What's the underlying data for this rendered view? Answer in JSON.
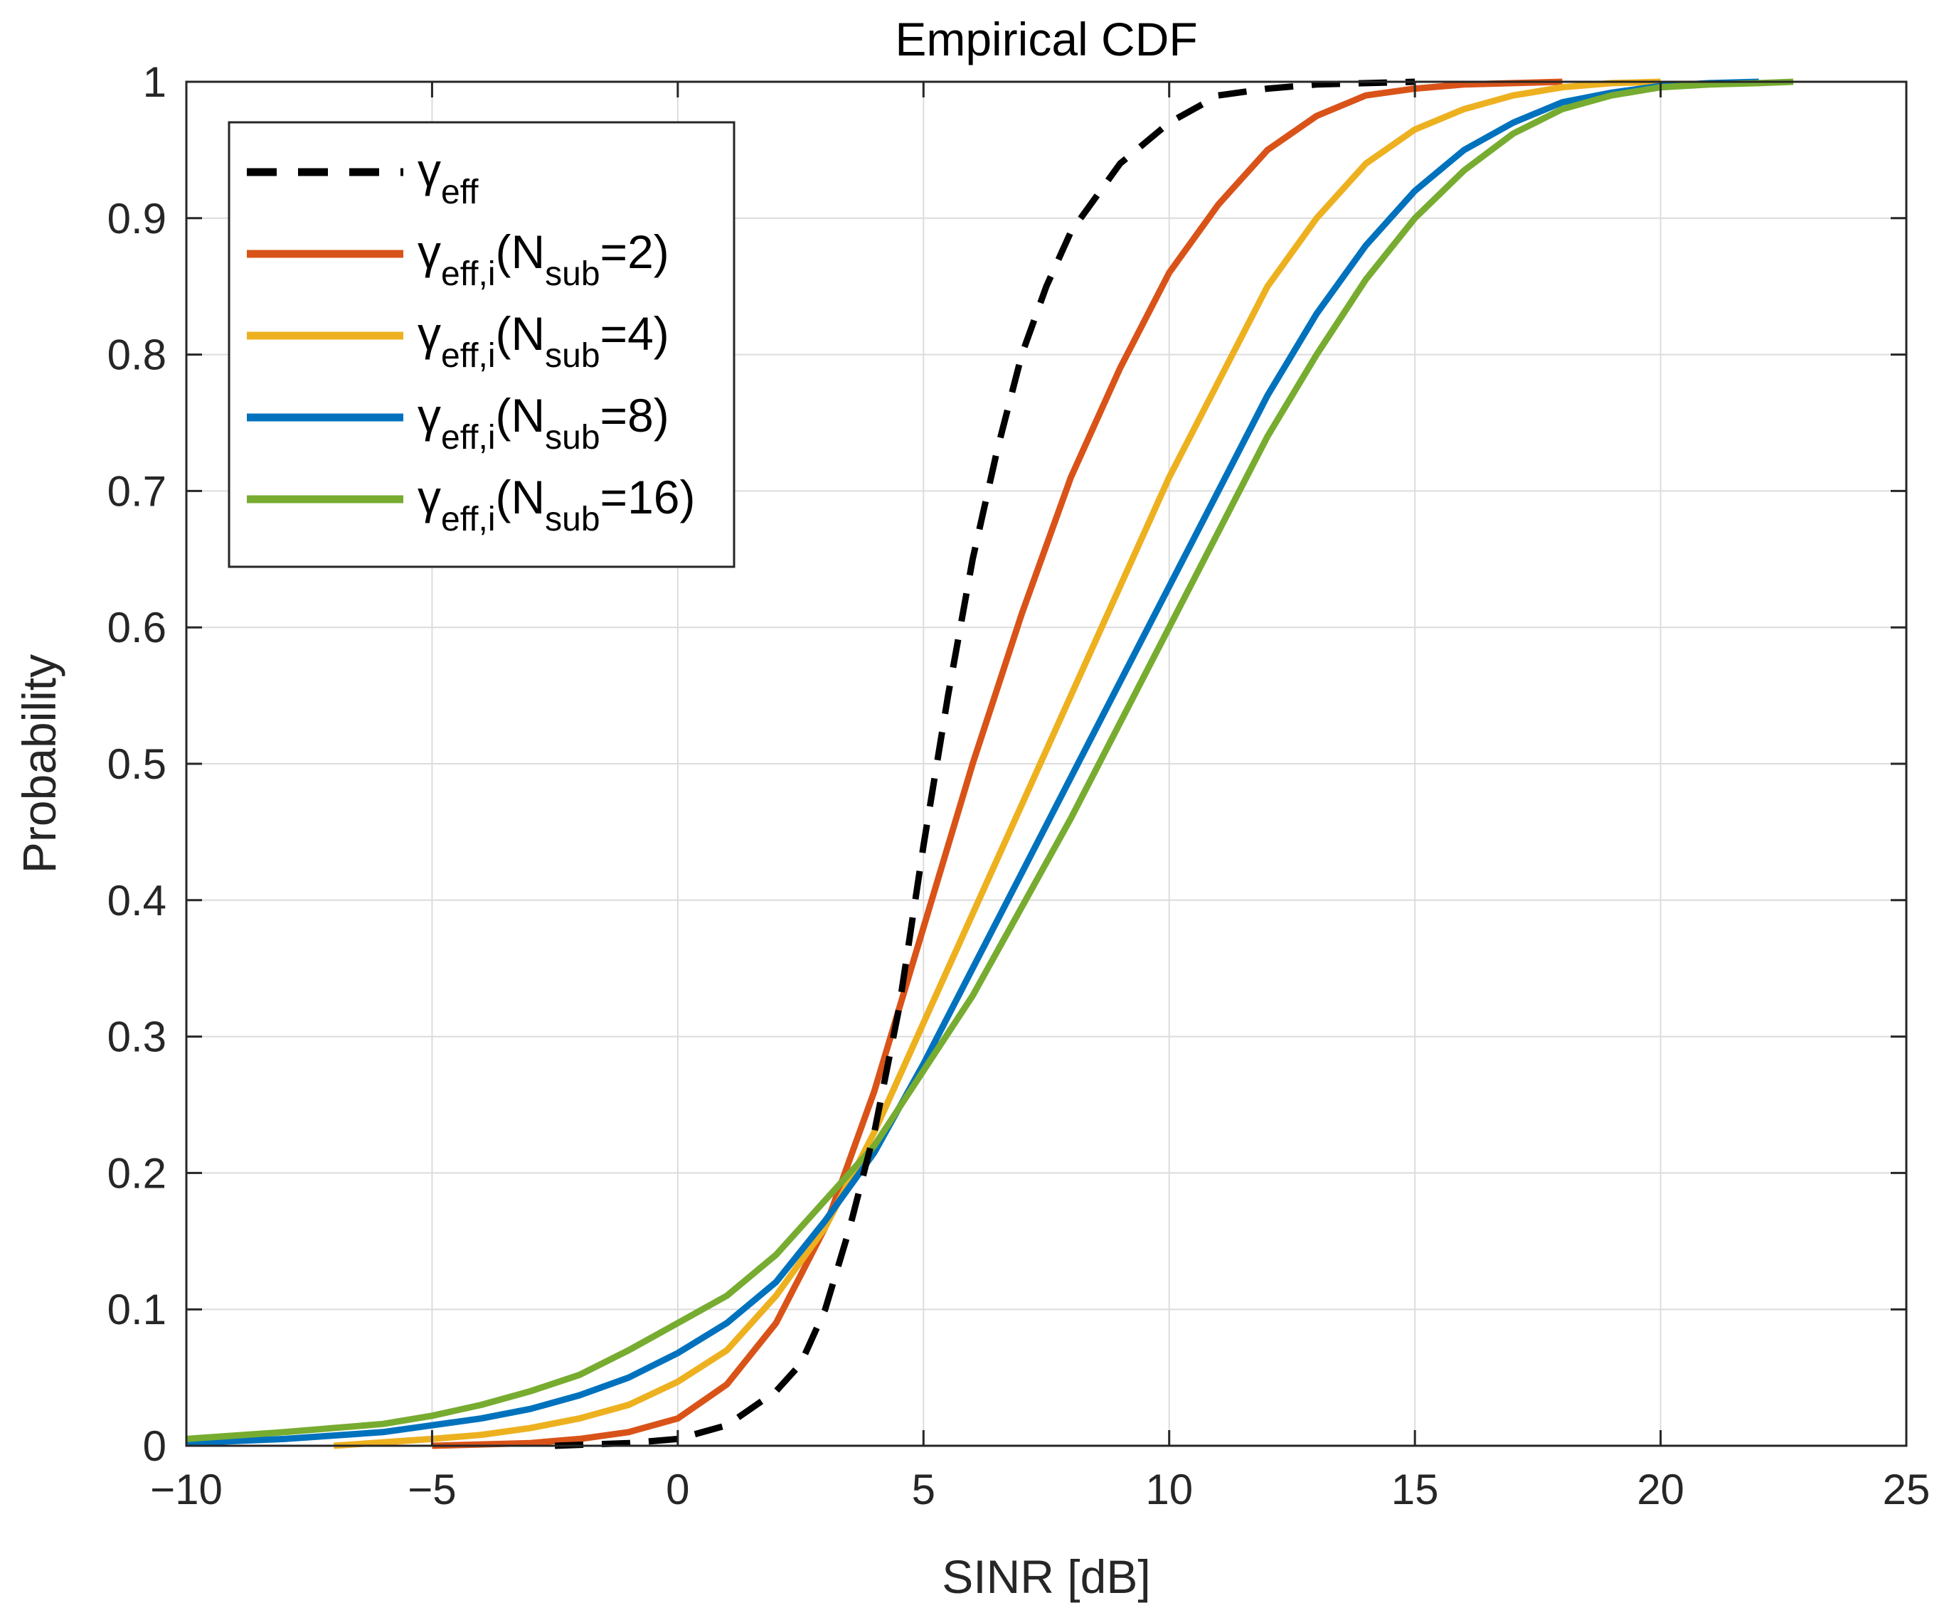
{
  "chart_data": {
    "type": "line",
    "title": "Empirical CDF",
    "xlabel": "SINR [dB]",
    "ylabel": "Probability",
    "xlim": [
      -10,
      25
    ],
    "ylim": [
      0,
      1
    ],
    "grid": true,
    "legend_position": "top-left",
    "xticks": [
      -10,
      -5,
      0,
      5,
      10,
      15,
      20,
      25
    ],
    "xtick_labels": [
      "−10",
      "−5",
      "0",
      "5",
      "10",
      "15",
      "20",
      "25"
    ],
    "yticks": [
      0,
      0.1,
      0.2,
      0.3,
      0.4,
      0.5,
      0.6,
      0.7,
      0.8,
      0.9,
      1
    ],
    "ytick_labels": [
      "0",
      "0.1",
      "0.2",
      "0.3",
      "0.4",
      "0.5",
      "0.6",
      "0.7",
      "0.8",
      "0.9",
      "1"
    ],
    "series": [
      {
        "name": "γeff",
        "legend": {
          "symbol": "γ",
          "sub": "eff",
          "suffix_pre": "",
          "sub2": "",
          "suffix_post": ""
        },
        "color": "#000000",
        "dashed": true,
        "x": [
          -2.5,
          -1,
          0,
          1,
          2,
          2.5,
          3,
          3.5,
          4,
          4.5,
          5,
          5.5,
          6,
          6.5,
          7,
          7.5,
          8,
          9,
          10,
          11,
          12,
          13,
          14,
          15
        ],
        "y": [
          0,
          0.002,
          0.005,
          0.015,
          0.04,
          0.06,
          0.1,
          0.16,
          0.23,
          0.32,
          0.44,
          0.55,
          0.65,
          0.73,
          0.8,
          0.85,
          0.89,
          0.94,
          0.97,
          0.99,
          0.995,
          0.998,
          0.999,
          1
        ]
      },
      {
        "name": "γeff,i(Nsub=2)",
        "legend": {
          "symbol": "γ",
          "sub": "eff,i",
          "suffix_pre": "(N",
          "sub2": "sub",
          "suffix_post": "=2)"
        },
        "color": "#d95319",
        "dashed": false,
        "x": [
          -5,
          -3,
          -2,
          -1,
          0,
          1,
          2,
          3,
          4,
          5,
          6,
          7,
          8,
          9,
          10,
          11,
          12,
          13,
          14,
          15,
          16,
          17,
          18
        ],
        "y": [
          0,
          0.002,
          0.005,
          0.01,
          0.02,
          0.045,
          0.09,
          0.16,
          0.26,
          0.38,
          0.5,
          0.61,
          0.71,
          0.79,
          0.86,
          0.91,
          0.95,
          0.975,
          0.99,
          0.995,
          0.998,
          0.999,
          1
        ]
      },
      {
        "name": "γeff,i(Nsub=4)",
        "legend": {
          "symbol": "γ",
          "sub": "eff,i",
          "suffix_pre": "(N",
          "sub2": "sub",
          "suffix_post": "=4)"
        },
        "color": "#edb120",
        "dashed": false,
        "x": [
          -7,
          -5,
          -4,
          -3,
          -2,
          -1,
          0,
          1,
          2,
          3,
          4,
          5,
          6,
          7,
          8,
          9,
          10,
          11,
          12,
          13,
          14,
          15,
          16,
          17,
          18,
          19,
          20
        ],
        "y": [
          0,
          0.005,
          0.008,
          0.013,
          0.02,
          0.03,
          0.047,
          0.07,
          0.11,
          0.16,
          0.23,
          0.31,
          0.39,
          0.47,
          0.55,
          0.63,
          0.71,
          0.78,
          0.85,
          0.9,
          0.94,
          0.965,
          0.98,
          0.99,
          0.996,
          0.999,
          1
        ]
      },
      {
        "name": "γeff,i(Nsub=8)",
        "legend": {
          "symbol": "γ",
          "sub": "eff,i",
          "suffix_pre": "(N",
          "sub2": "sub",
          "suffix_post": "=8)"
        },
        "color": "#0072bd",
        "dashed": false,
        "x": [
          -10,
          -8,
          -6,
          -5,
          -4,
          -3,
          -2,
          -1,
          0,
          1,
          2,
          3,
          4,
          5,
          6,
          7,
          8,
          9,
          10,
          11,
          12,
          13,
          14,
          15,
          16,
          17,
          18,
          19,
          20,
          21,
          22
        ],
        "y": [
          0.002,
          0.005,
          0.01,
          0.015,
          0.02,
          0.027,
          0.037,
          0.05,
          0.068,
          0.09,
          0.12,
          0.165,
          0.215,
          0.28,
          0.35,
          0.42,
          0.49,
          0.56,
          0.63,
          0.7,
          0.77,
          0.83,
          0.88,
          0.92,
          0.95,
          0.97,
          0.985,
          0.992,
          0.997,
          0.999,
          1
        ]
      },
      {
        "name": "γeff,i(Nsub=16)",
        "legend": {
          "symbol": "γ",
          "sub": "eff,i",
          "suffix_pre": "(N",
          "sub2": "sub",
          "suffix_post": "=16)"
        },
        "color": "#77ac30",
        "dashed": false,
        "x": [
          -10,
          -8,
          -6,
          -5,
          -4,
          -3,
          -2,
          -1,
          0,
          1,
          2,
          3,
          4,
          5,
          6,
          7,
          8,
          9,
          10,
          11,
          12,
          13,
          14,
          15,
          16,
          17,
          18,
          19,
          20,
          21,
          22,
          22.7
        ],
        "y": [
          0.005,
          0.01,
          0.016,
          0.022,
          0.03,
          0.04,
          0.052,
          0.07,
          0.09,
          0.11,
          0.14,
          0.18,
          0.22,
          0.275,
          0.33,
          0.395,
          0.46,
          0.53,
          0.6,
          0.67,
          0.74,
          0.8,
          0.855,
          0.9,
          0.935,
          0.962,
          0.98,
          0.99,
          0.996,
          0.998,
          0.999,
          1
        ]
      }
    ]
  }
}
